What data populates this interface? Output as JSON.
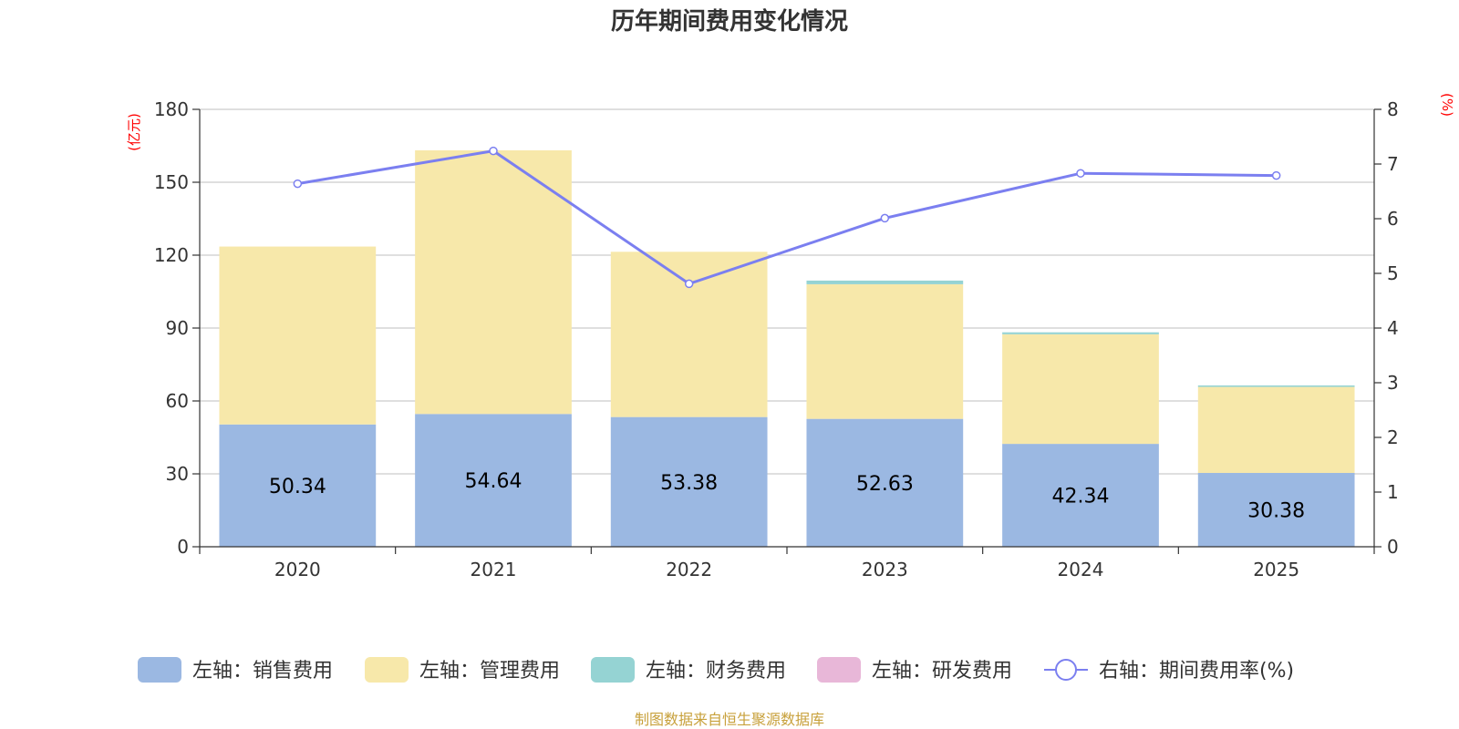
{
  "chart_data": {
    "type": "bar",
    "stacked": true,
    "title": "历年期间费用变化情况",
    "categories": [
      "2020",
      "2021",
      "2022",
      "2023",
      "2024",
      "2025"
    ],
    "y_left": {
      "unit_label": "(亿元)",
      "ylim": [
        0,
        180
      ],
      "ticks": [
        0,
        30,
        60,
        90,
        120,
        150,
        180
      ]
    },
    "y_right": {
      "unit_label": "(%)",
      "ylim": [
        0,
        8
      ],
      "ticks": [
        0,
        1,
        2,
        3,
        4,
        5,
        6,
        7,
        8
      ]
    },
    "series": [
      {
        "name": "左轴：销售费用",
        "type": "bar",
        "axis": "left",
        "color": "#9bb8e2",
        "values": [
          50.34,
          54.64,
          53.38,
          52.63,
          42.34,
          30.38
        ],
        "show_labels": true
      },
      {
        "name": "左轴：管理费用",
        "type": "bar",
        "axis": "left",
        "color": "#f7e8aa",
        "values": [
          73.2,
          108.5,
          68.0,
          55.4,
          45.1,
          35.4
        ],
        "show_labels": false
      },
      {
        "name": "左轴：财务费用",
        "type": "bar",
        "axis": "left",
        "color": "#95d3d3",
        "values": [
          0,
          0,
          0,
          1.5,
          0.8,
          0.6
        ],
        "show_labels": false
      },
      {
        "name": "左轴：研发费用",
        "type": "bar",
        "axis": "left",
        "color": "#e8b7d8",
        "values": [
          0,
          0,
          0,
          0,
          0,
          0
        ],
        "show_labels": false
      },
      {
        "name": "右轴：期间费用率(%)",
        "type": "line",
        "axis": "right",
        "color": "#7b7ff0",
        "values": [
          6.64,
          7.24,
          4.81,
          6.01,
          6.83,
          6.79
        ]
      }
    ]
  },
  "source": "制图数据来自恒生聚源数据库"
}
